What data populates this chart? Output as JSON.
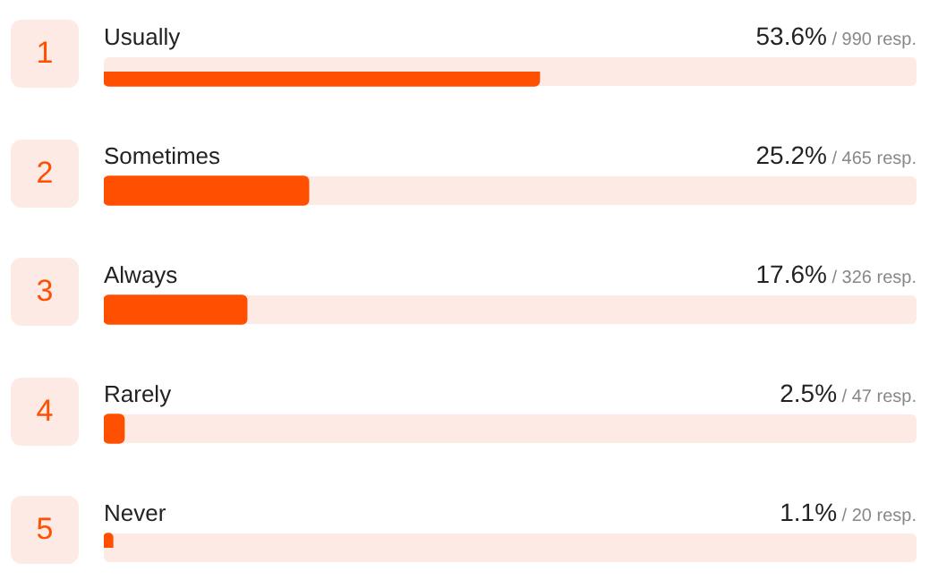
{
  "chart_data": {
    "type": "bar",
    "orientation": "horizontal",
    "categories": [
      "Usually",
      "Sometimes",
      "Always",
      "Rarely",
      "Never"
    ],
    "values": [
      53.6,
      25.2,
      17.6,
      2.5,
      1.1
    ],
    "color": "#fe5000",
    "value_labels": [
      "53.6% / 990 resp.",
      "25.2% / 465 resp.",
      "17.6% / 326 resp.",
      "2.5% / 47 resp.",
      "1.1% / 20 resp."
    ],
    "annotations": [
      "1",
      "2",
      "3",
      "4",
      "5"
    ],
    "tick_labels": false
  }
}
